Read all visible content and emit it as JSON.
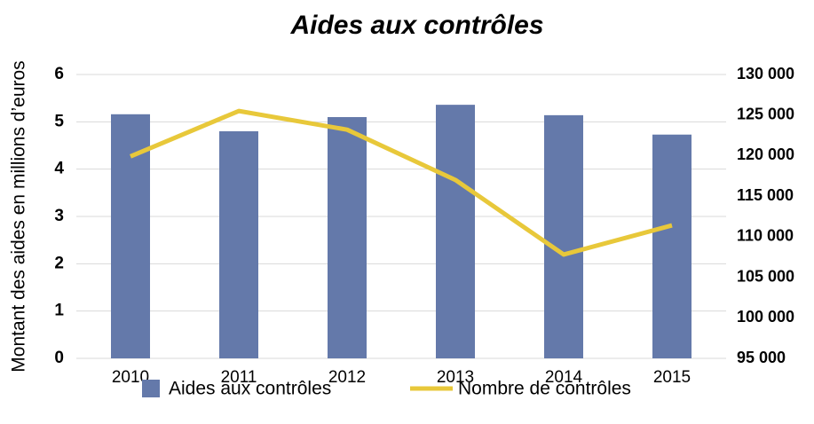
{
  "chart_data": {
    "type": "bar",
    "title": "Aides aux contrôles",
    "y_label": "Montant des aides en millions d’euros",
    "categories": [
      "2010",
      "2011",
      "2012",
      "2013",
      "2014",
      "2015"
    ],
    "series": [
      {
        "name": "Aides aux contrôles",
        "type": "bar",
        "color": "#6479aa",
        "values": [
          5.16,
          4.8,
          5.1,
          5.36,
          5.14,
          4.73
        ]
      },
      {
        "name": "Nombre de contrôles",
        "type": "line",
        "axis": "y2",
        "color": "#e8c83a",
        "values": [
          119900,
          125500,
          123200,
          117000,
          107800,
          111400
        ]
      }
    ],
    "ylim": [
      0,
      6
    ],
    "yticks": [
      0,
      1,
      2,
      3,
      4,
      5,
      6
    ],
    "y2lim": [
      95000,
      130000
    ],
    "y2ticks": [
      {
        "value": 95000,
        "label": "95 000"
      },
      {
        "value": 100000,
        "label": "100 000"
      },
      {
        "value": 105000,
        "label": "105 000"
      },
      {
        "value": 110000,
        "label": "110 000"
      },
      {
        "value": 115000,
        "label": "115 000"
      },
      {
        "value": 120000,
        "label": "120 000"
      },
      {
        "value": 125000,
        "label": "125 000"
      },
      {
        "value": 130000,
        "label": "130 000"
      }
    ],
    "grid": true,
    "legend": "bottom"
  }
}
